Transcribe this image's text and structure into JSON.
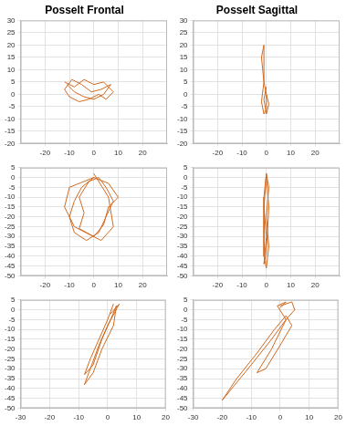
{
  "chart_data": [
    {
      "type": "scatter",
      "title": "Posselt Frontal",
      "grid": true,
      "marker": "none",
      "line_style": "solid",
      "xlim": [
        -30,
        30
      ],
      "xticks": [
        -20,
        -10,
        0,
        10,
        20
      ],
      "ylim": [
        -20,
        30
      ],
      "yticks": [
        -20,
        -15,
        -10,
        -5,
        0,
        5,
        10,
        15,
        20,
        25,
        30
      ],
      "series": [
        {
          "color": "#d2691e",
          "x": [
            -12,
            -8,
            -4,
            0,
            4,
            6,
            8,
            5,
            2,
            -2,
            -6,
            -10,
            -12,
            -9,
            -5,
            -1,
            3,
            7,
            4,
            0,
            -4,
            -8,
            -11
          ],
          "values": [
            5,
            3,
            6,
            4,
            5,
            3,
            1,
            -2,
            0,
            -2,
            -3,
            -1,
            2,
            6,
            4,
            1,
            2,
            4,
            0,
            -2,
            -1,
            1,
            4
          ]
        }
      ]
    },
    {
      "type": "scatter",
      "title": "Posselt Sagittal",
      "grid": true,
      "marker": "none",
      "line_style": "solid",
      "xlim": [
        -30,
        30
      ],
      "xticks": [
        -20,
        -10,
        0,
        10,
        20
      ],
      "ylim": [
        -20,
        30
      ],
      "yticks": [
        -20,
        -15,
        -10,
        -5,
        0,
        5,
        10,
        15,
        20,
        25,
        30
      ],
      "series": [
        {
          "color": "#d2691e",
          "x": [
            0,
            -1,
            -1,
            -1,
            -2,
            -1,
            -2,
            -1,
            0,
            0,
            1,
            0,
            -1,
            0
          ],
          "values": [
            0,
            5,
            12,
            20,
            15,
            5,
            -3,
            -8,
            -6,
            0,
            -4,
            -8,
            -2,
            3
          ]
        }
      ]
    },
    {
      "type": "scatter",
      "grid": true,
      "marker": "none",
      "line_style": "solid",
      "xlim": [
        -30,
        30
      ],
      "xticks": [
        -20,
        -10,
        0,
        10,
        20
      ],
      "ylim": [
        -50,
        5
      ],
      "yticks": [
        -50,
        -45,
        -40,
        -35,
        -30,
        -25,
        -20,
        -15,
        -10,
        -5,
        0,
        5
      ],
      "series": [
        {
          "color": "#d2691e",
          "x": [
            0,
            -5,
            -8,
            -10,
            -8,
            -3,
            2,
            5,
            8,
            5,
            2,
            -2,
            -6,
            -4,
            -6,
            0,
            4,
            6,
            10,
            6,
            0,
            -10,
            -12,
            -8,
            3,
            8,
            6,
            0
          ],
          "values": [
            0,
            -5,
            -12,
            -20,
            -28,
            -32,
            -28,
            -20,
            -12,
            -5,
            0,
            -2,
            -10,
            -18,
            -26,
            -30,
            -24,
            -15,
            -10,
            -3,
            0,
            -5,
            -15,
            -25,
            -32,
            -25,
            -10,
            2
          ]
        }
      ]
    },
    {
      "type": "scatter",
      "grid": true,
      "marker": "none",
      "line_style": "solid",
      "xlim": [
        -30,
        30
      ],
      "xticks": [
        -20,
        -10,
        0,
        10,
        20
      ],
      "ylim": [
        -50,
        5
      ],
      "yticks": [
        -50,
        -45,
        -40,
        -35,
        -30,
        -25,
        -20,
        -15,
        -10,
        -5,
        0,
        5
      ],
      "series": [
        {
          "color": "#d2691e",
          "x": [
            0,
            -1,
            -1,
            -1,
            0,
            1,
            0,
            1,
            0,
            -1,
            0,
            -1,
            0,
            1,
            0
          ],
          "values": [
            2,
            -10,
            -25,
            -40,
            -46,
            -35,
            -20,
            -5,
            2,
            -15,
            -30,
            -44,
            -38,
            -15,
            0
          ]
        }
      ]
    },
    {
      "type": "scatter",
      "grid": true,
      "marker": "none",
      "line_style": "solid",
      "xlim": [
        -30,
        20
      ],
      "xticks": [
        -30,
        -20,
        -10,
        0,
        10,
        20
      ],
      "ylim": [
        -50,
        5
      ],
      "yticks": [
        -50,
        -45,
        -40,
        -35,
        -30,
        -25,
        -20,
        -15,
        -10,
        -5,
        0,
        5
      ],
      "series": [
        {
          "color": "#d2691e",
          "x": [
            2,
            0,
            -3,
            -6,
            -8,
            -5,
            -2,
            1,
            3,
            2,
            -2,
            -5,
            -8,
            -6,
            -3,
            0,
            4,
            1
          ],
          "values": [
            3,
            -5,
            -15,
            -25,
            -33,
            -28,
            -15,
            -5,
            2,
            -8,
            -20,
            -32,
            -38,
            -30,
            -18,
            -8,
            3,
            -2
          ]
        }
      ]
    },
    {
      "type": "scatter",
      "grid": true,
      "marker": "none",
      "line_style": "solid",
      "xlim": [
        -30,
        20
      ],
      "xticks": [
        -30,
        -20,
        -10,
        0,
        10,
        20
      ],
      "ylim": [
        -50,
        5
      ],
      "yticks": [
        -50,
        -45,
        -40,
        -35,
        -30,
        -25,
        -20,
        -15,
        -10,
        -5,
        0,
        5
      ],
      "series": [
        {
          "color": "#d2691e",
          "x": [
            0,
            4,
            5,
            2,
            -3,
            -10,
            -20,
            -15,
            -8,
            -2,
            2,
            4,
            0,
            -5,
            -8,
            -3,
            2,
            -1,
            2,
            0
          ],
          "values": [
            2,
            4,
            0,
            -5,
            -15,
            -28,
            -46,
            -35,
            -22,
            -10,
            -3,
            -8,
            -18,
            -30,
            -32,
            -20,
            -5,
            2,
            4,
            1
          ]
        }
      ]
    }
  ]
}
